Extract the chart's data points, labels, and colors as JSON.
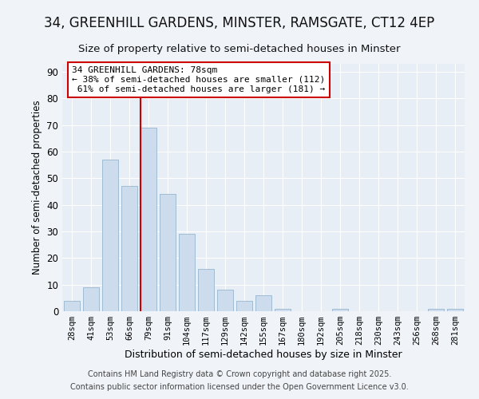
{
  "title_line1": "34, GREENHILL GARDENS, MINSTER, RAMSGATE, CT12 4EP",
  "title_line2": "Size of property relative to semi-detached houses in Minster",
  "xlabel": "Distribution of semi-detached houses by size in Minster",
  "ylabel": "Number of semi-detached properties",
  "bin_labels": [
    "28sqm",
    "41sqm",
    "53sqm",
    "66sqm",
    "79sqm",
    "91sqm",
    "104sqm",
    "117sqm",
    "129sqm",
    "142sqm",
    "155sqm",
    "167sqm",
    "180sqm",
    "192sqm",
    "205sqm",
    "218sqm",
    "230sqm",
    "243sqm",
    "256sqm",
    "268sqm",
    "281sqm"
  ],
  "bar_values": [
    4,
    9,
    57,
    47,
    69,
    44,
    29,
    16,
    8,
    4,
    6,
    1,
    0,
    0,
    1,
    0,
    0,
    0,
    0,
    1,
    1
  ],
  "bar_color": "#ccdcec",
  "bar_edgecolor": "#a0bcd4",
  "property_bin_index": 4,
  "vline_color": "#cc0000",
  "annotation_line1": "34 GREENHILL GARDENS: 78sqm",
  "annotation_line2": "← 38% of semi-detached houses are smaller (112)",
  "annotation_line3": " 61% of semi-detached houses are larger (181) →",
  "annotation_box_facecolor": "#ffffff",
  "annotation_box_edgecolor": "#cc0000",
  "ylim": [
    0,
    93
  ],
  "yticks": [
    0,
    10,
    20,
    30,
    40,
    50,
    60,
    70,
    80,
    90
  ],
  "footer1": "Contains HM Land Registry data © Crown copyright and database right 2025.",
  "footer2": "Contains public sector information licensed under the Open Government Licence v3.0.",
  "bg_color": "#f0f4f8",
  "plot_bg_color": "#e8eef5",
  "grid_color": "#ffffff",
  "title1_fontsize": 12,
  "title2_fontsize": 9.5
}
